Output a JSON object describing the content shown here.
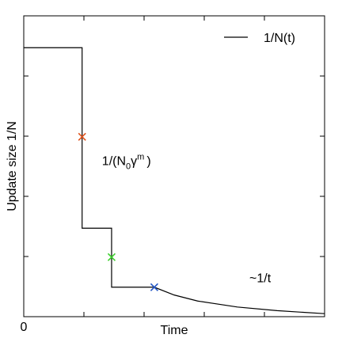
{
  "chart_data": {
    "type": "line",
    "xlabel": "Time",
    "ylabel": "Update size 1/N",
    "xlim": [
      0,
      5
    ],
    "ylim": [
      0,
      5
    ],
    "xticks": [
      1,
      2,
      3,
      4
    ],
    "yticks": [
      1,
      2,
      3,
      4
    ],
    "origin_label": 0,
    "legend": "upper right",
    "series": [
      {
        "name": "1/N(t)",
        "color": "#000000",
        "x": [
          0,
          0.97,
          0.97,
          1.46,
          1.46,
          2.17,
          2.5,
          2.89,
          3.55,
          4.21,
          5
        ],
        "values": [
          4.47,
          4.47,
          1.47,
          1.47,
          0.49,
          0.49,
          0.36,
          0.26,
          0.16,
          0.1,
          0.05
        ]
      }
    ],
    "markers": [
      {
        "x": 0.97,
        "y": 2.99,
        "color": "#e0531c"
      },
      {
        "x": 1.46,
        "y": 0.99,
        "color": "#3ccf2c"
      },
      {
        "x": 2.17,
        "y": 0.49,
        "color": "#2457c5"
      }
    ],
    "annotations": [
      {
        "text": "1/(N",
        "sub": "0",
        "mid": "γ",
        "sup": "m",
        "end": ")",
        "x": 1.3,
        "y": 2.52
      },
      {
        "text": "~1/t",
        "x": 3.75,
        "y": 0.57
      }
    ]
  }
}
